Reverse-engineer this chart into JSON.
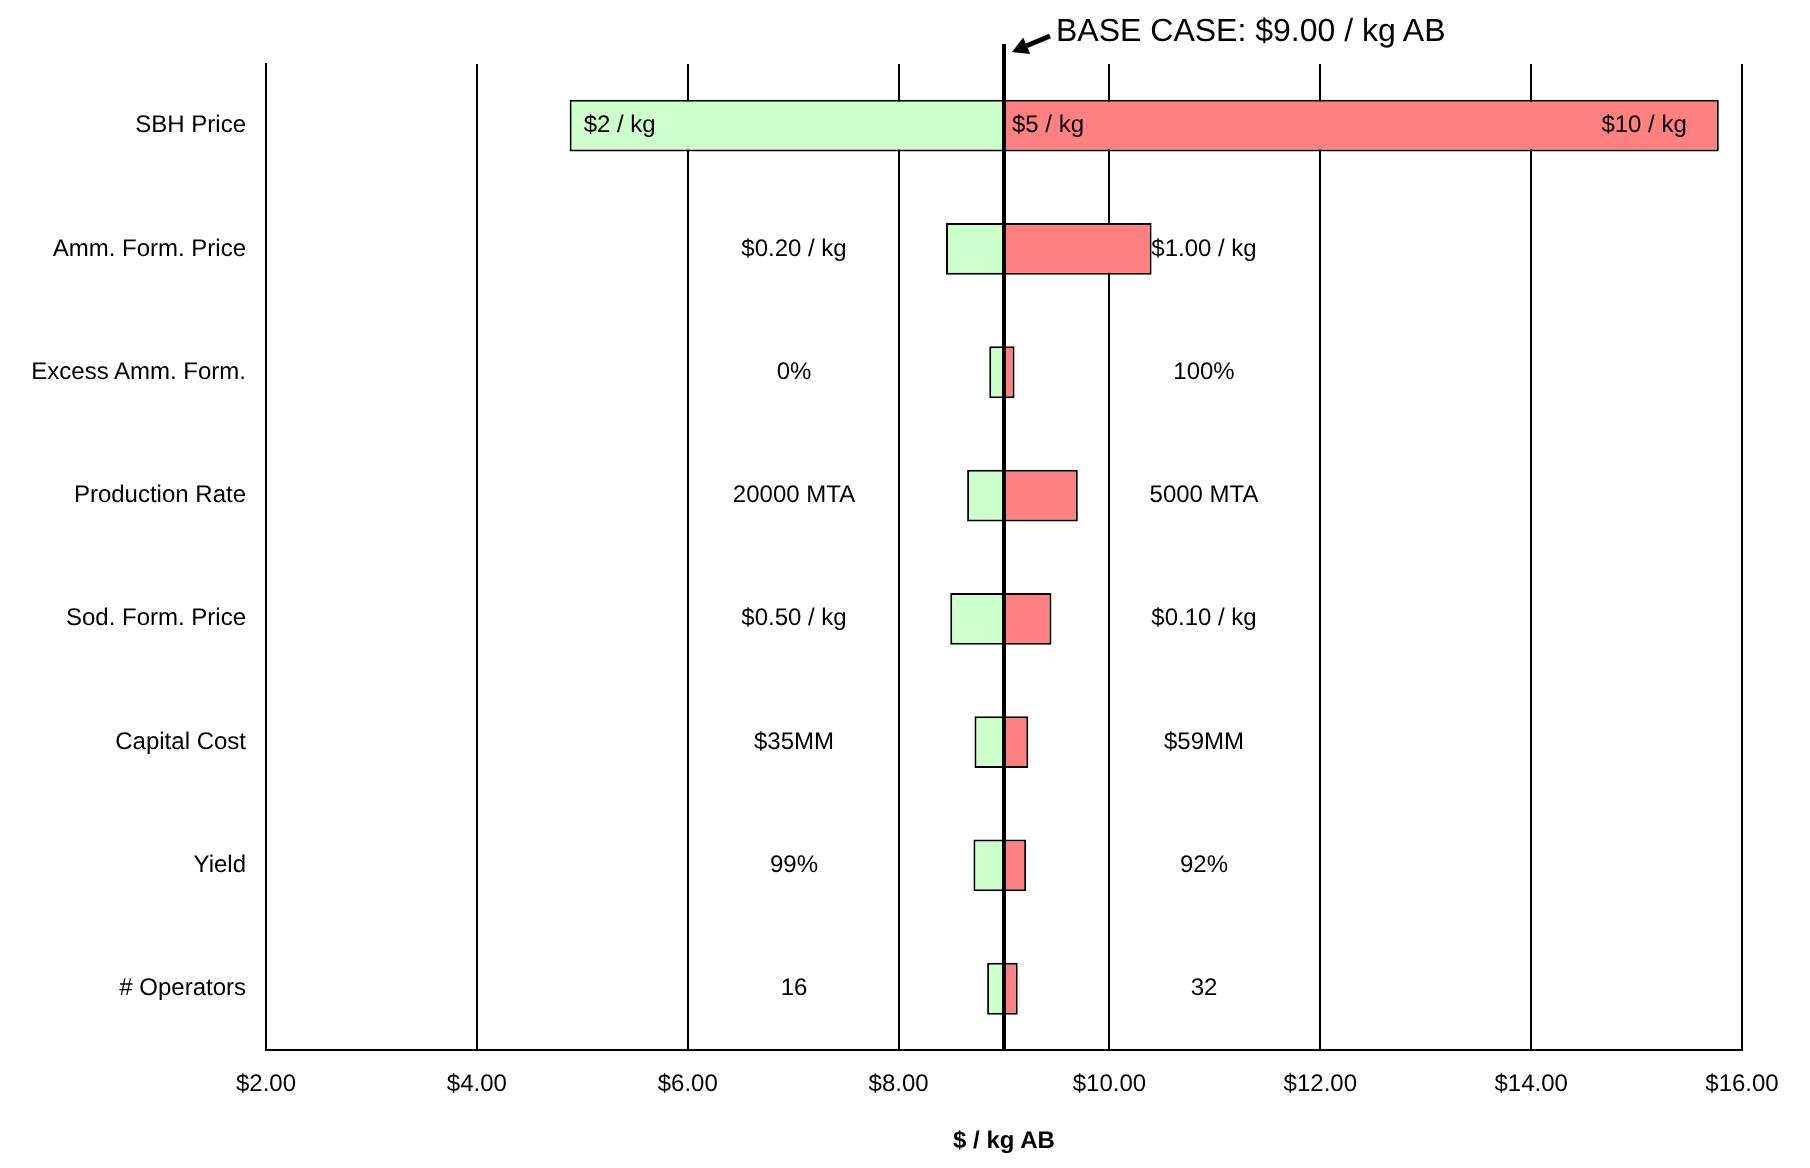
{
  "chart_data": {
    "type": "bar",
    "orientation": "horizontal",
    "xlabel": "$ / kg AB",
    "categories": [
      "SBH Price",
      "Amm. Form. Price",
      "Excess Amm. Form.",
      "Production Rate",
      "Sod. Form. Price",
      "Capital Cost",
      "Yield",
      "# Operators"
    ],
    "series": [
      {
        "color": "#ccffcc",
        "base": [
          4.88,
          8.45,
          8.86,
          8.65,
          8.49,
          8.72,
          8.71,
          8.84
        ],
        "values": [
          4.12,
          0.55,
          0.14,
          0.35,
          0.51,
          0.28,
          0.29,
          0.16
        ]
      },
      {
        "color": "#ff8080",
        "base": [
          9,
          9,
          9,
          9,
          9,
          9,
          9,
          9
        ],
        "values": [
          6.78,
          1.4,
          0.1,
          0.7,
          0.45,
          0.23,
          0.21,
          0.13
        ]
      }
    ],
    "xlim": [
      2,
      16
    ],
    "xticks": [
      {
        "value": 2,
        "label": "$2.00"
      },
      {
        "value": 4,
        "label": "$4.00"
      },
      {
        "value": 6,
        "label": "$6.00"
      },
      {
        "value": 8,
        "label": "$8.00"
      },
      {
        "value": 10,
        "label": "$10.00"
      },
      {
        "value": 12,
        "label": "$12.00"
      },
      {
        "value": 14,
        "label": "$14.00"
      },
      {
        "value": 16,
        "label": "$16.00"
      }
    ],
    "ref_lines": [
      {
        "axis": "x",
        "value": 9,
        "label": "BASE CASE: $9.00 / kg AB",
        "color": "#000000"
      }
    ],
    "annotations": [
      "$2 / kg",
      "$5 / kg",
      "$10 / kg",
      "$0.20 / kg",
      "$1.00 / kg",
      "0%",
      "100%",
      "20000 MTA",
      "5000 MTA",
      "$0.50 / kg",
      "$0.10 / kg",
      "$35MM",
      "$59MM",
      "99%",
      "92%",
      "16",
      "32"
    ],
    "grid": "x",
    "legend": false
  }
}
